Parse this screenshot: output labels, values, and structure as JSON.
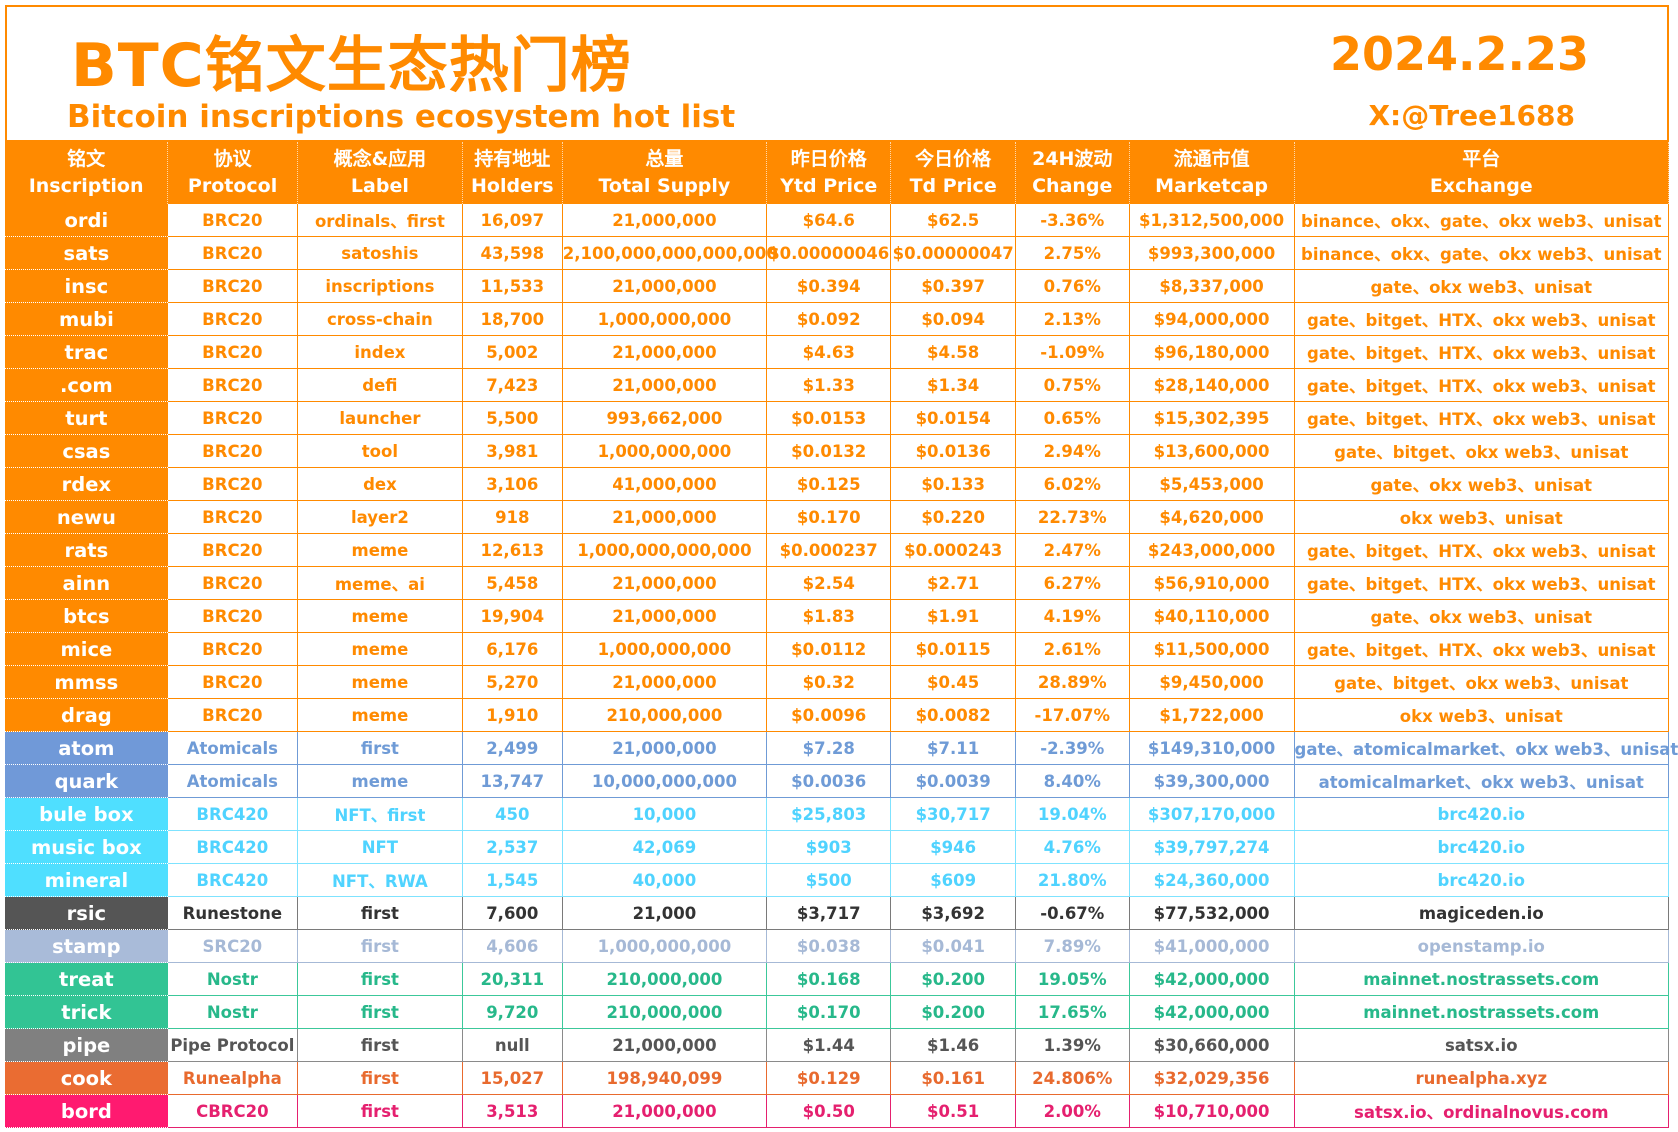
{
  "header": {
    "title_cn": "BTC铭文生态热门榜",
    "title_en": "Bitcoin inscriptions ecosystem hot list",
    "date": "2024.2.23",
    "handle": "X:@Tree1688"
  },
  "columns": [
    {
      "cn": "铭文",
      "en": "Inscription"
    },
    {
      "cn": "协议",
      "en": "Protocol"
    },
    {
      "cn": "概念&应用",
      "en": "Label"
    },
    {
      "cn": "持有地址",
      "en": "Holders"
    },
    {
      "cn": "总量",
      "en": "Total Supply"
    },
    {
      "cn": "昨日价格",
      "en": "Ytd Price"
    },
    {
      "cn": "今日价格",
      "en": "Td Price"
    },
    {
      "cn": "24H波动",
      "en": "Change"
    },
    {
      "cn": "流通市值",
      "en": "Marketcap"
    },
    {
      "cn": "平台",
      "en": "Exchange"
    }
  ],
  "rows": [
    {
      "group": "brc20",
      "name": "ordi",
      "protocol": "BRC20",
      "label": "ordinals、first",
      "holders": "16,097",
      "supply": "21,000,000",
      "ytd": "$64.6",
      "td": "$62.5",
      "change": "-3.36%",
      "mcap": "$1,312,500,000",
      "exchange": "binance、okx、gate、okx web3、unisat"
    },
    {
      "group": "brc20",
      "name": "sats",
      "protocol": "BRC20",
      "label": "satoshis",
      "holders": "43,598",
      "supply": "2,100,000,000,000,000",
      "ytd": "$0.00000046",
      "td": "$0.00000047",
      "change": "2.75%",
      "mcap": "$993,300,000",
      "exchange": "binance、okx、gate、okx web3、unisat"
    },
    {
      "group": "brc20",
      "name": "insc",
      "protocol": "BRC20",
      "label": "inscriptions",
      "holders": "11,533",
      "supply": "21,000,000",
      "ytd": "$0.394",
      "td": "$0.397",
      "change": "0.76%",
      "mcap": "$8,337,000",
      "exchange": "gate、okx web3、unisat"
    },
    {
      "group": "brc20",
      "name": "mubi",
      "protocol": "BRC20",
      "label": "cross-chain",
      "holders": "18,700",
      "supply": "1,000,000,000",
      "ytd": "$0.092",
      "td": "$0.094",
      "change": "2.13%",
      "mcap": "$94,000,000",
      "exchange": "gate、bitget、HTX、okx web3、unisat"
    },
    {
      "group": "brc20",
      "name": "trac",
      "protocol": "BRC20",
      "label": "index",
      "holders": "5,002",
      "supply": "21,000,000",
      "ytd": "$4.63",
      "td": "$4.58",
      "change": "-1.09%",
      "mcap": "$96,180,000",
      "exchange": "gate、bitget、HTX、okx web3、unisat"
    },
    {
      "group": "brc20",
      "name": ".com",
      "protocol": "BRC20",
      "label": "defi",
      "holders": "7,423",
      "supply": "21,000,000",
      "ytd": "$1.33",
      "td": "$1.34",
      "change": "0.75%",
      "mcap": "$28,140,000",
      "exchange": "gate、bitget、HTX、okx web3、unisat"
    },
    {
      "group": "brc20",
      "name": "turt",
      "protocol": "BRC20",
      "label": "launcher",
      "holders": "5,500",
      "supply": "993,662,000",
      "ytd": "$0.0153",
      "td": "$0.0154",
      "change": "0.65%",
      "mcap": "$15,302,395",
      "exchange": "gate、bitget、HTX、okx web3、unisat"
    },
    {
      "group": "brc20",
      "name": "csas",
      "protocol": "BRC20",
      "label": "tool",
      "holders": "3,981",
      "supply": "1,000,000,000",
      "ytd": "$0.0132",
      "td": "$0.0136",
      "change": "2.94%",
      "mcap": "$13,600,000",
      "exchange": "gate、bitget、okx web3、unisat"
    },
    {
      "group": "brc20",
      "name": "rdex",
      "protocol": "BRC20",
      "label": "dex",
      "holders": "3,106",
      "supply": "41,000,000",
      "ytd": "$0.125",
      "td": "$0.133",
      "change": "6.02%",
      "mcap": "$5,453,000",
      "exchange": "gate、okx web3、unisat"
    },
    {
      "group": "brc20",
      "name": "newu",
      "protocol": "BRC20",
      "label": "layer2",
      "holders": "918",
      "supply": "21,000,000",
      "ytd": "$0.170",
      "td": "$0.220",
      "change": "22.73%",
      "mcap": "$4,620,000",
      "exchange": "okx web3、unisat"
    },
    {
      "group": "brc20",
      "name": "rats",
      "protocol": "BRC20",
      "label": "meme",
      "holders": "12,613",
      "supply": "1,000,000,000,000",
      "ytd": "$0.000237",
      "td": "$0.000243",
      "change": "2.47%",
      "mcap": "$243,000,000",
      "exchange": "gate、bitget、HTX、okx web3、unisat"
    },
    {
      "group": "brc20",
      "name": "ainn",
      "protocol": "BRC20",
      "label": "meme、ai",
      "holders": "5,458",
      "supply": "21,000,000",
      "ytd": "$2.54",
      "td": "$2.71",
      "change": "6.27%",
      "mcap": "$56,910,000",
      "exchange": "gate、bitget、HTX、okx web3、unisat"
    },
    {
      "group": "brc20",
      "name": "btcs",
      "protocol": "BRC20",
      "label": "meme",
      "holders": "19,904",
      "supply": "21,000,000",
      "ytd": "$1.83",
      "td": "$1.91",
      "change": "4.19%",
      "mcap": "$40,110,000",
      "exchange": "gate、okx web3、unisat"
    },
    {
      "group": "brc20",
      "name": "mice",
      "protocol": "BRC20",
      "label": "meme",
      "holders": "6,176",
      "supply": "1,000,000,000",
      "ytd": "$0.0112",
      "td": "$0.0115",
      "change": "2.61%",
      "mcap": "$11,500,000",
      "exchange": "gate、bitget、HTX、okx web3、unisat"
    },
    {
      "group": "brc20",
      "name": "mmss",
      "protocol": "BRC20",
      "label": "meme",
      "holders": "5,270",
      "supply": "21,000,000",
      "ytd": "$0.32",
      "td": "$0.45",
      "change": "28.89%",
      "mcap": "$9,450,000",
      "exchange": "gate、bitget、okx web3、unisat"
    },
    {
      "group": "brc20",
      "name": "drag",
      "protocol": "BRC20",
      "label": "meme",
      "holders": "1,910",
      "supply": "210,000,000",
      "ytd": "$0.0096",
      "td": "$0.0082",
      "change": "-17.07%",
      "mcap": "$1,722,000",
      "exchange": "okx web3、unisat"
    },
    {
      "group": "atom",
      "name": "atom",
      "protocol": "Atomicals",
      "label": "first",
      "holders": "2,499",
      "supply": "21,000,000",
      "ytd": "$7.28",
      "td": "$7.11",
      "change": "-2.39%",
      "mcap": "$149,310,000",
      "exchange": "gate、atomicalmarket、okx web3、unisat"
    },
    {
      "group": "atom",
      "name": "quark",
      "protocol": "Atomicals",
      "label": "meme",
      "holders": "13,747",
      "supply": "10,000,000,000",
      "ytd": "$0.0036",
      "td": "$0.0039",
      "change": "8.40%",
      "mcap": "$39,300,000",
      "exchange": "atomicalmarket、okx web3、unisat"
    },
    {
      "group": "brc420",
      "name": "bule box",
      "protocol": "BRC420",
      "label": "NFT、first",
      "holders": "450",
      "supply": "10,000",
      "ytd": "$25,803",
      "td": "$30,717",
      "change": "19.04%",
      "mcap": "$307,170,000",
      "exchange": "brc420.io"
    },
    {
      "group": "brc420",
      "name": "music box",
      "protocol": "BRC420",
      "label": "NFT",
      "holders": "2,537",
      "supply": "42,069",
      "ytd": "$903",
      "td": "$946",
      "change": "4.76%",
      "mcap": "$39,797,274",
      "exchange": "brc420.io"
    },
    {
      "group": "brc420",
      "name": "mineral",
      "protocol": "BRC420",
      "label": "NFT、RWA",
      "holders": "1,545",
      "supply": "40,000",
      "ytd": "$500",
      "td": "$609",
      "change": "21.80%",
      "mcap": "$24,360,000",
      "exchange": "brc420.io"
    },
    {
      "group": "rune",
      "name": "rsic",
      "protocol": "Runestone",
      "label": "first",
      "holders": "7,600",
      "supply": "21,000",
      "ytd": "$3,717",
      "td": "$3,692",
      "change": "-0.67%",
      "mcap": "$77,532,000",
      "exchange": "magiceden.io"
    },
    {
      "group": "src20",
      "name": "stamp",
      "protocol": "SRC20",
      "label": "first",
      "holders": "4,606",
      "supply": "1,000,000,000",
      "ytd": "$0.038",
      "td": "$0.041",
      "change": "7.89%",
      "mcap": "$41,000,000",
      "exchange": "openstamp.io"
    },
    {
      "group": "nostr",
      "name": "treat",
      "protocol": "Nostr",
      "label": "first",
      "holders": "20,311",
      "supply": "210,000,000",
      "ytd": "$0.168",
      "td": "$0.200",
      "change": "19.05%",
      "mcap": "$42,000,000",
      "exchange": "mainnet.nostrassets.com"
    },
    {
      "group": "nostr",
      "name": "trick",
      "protocol": "Nostr",
      "label": "first",
      "holders": "9,720",
      "supply": "210,000,000",
      "ytd": "$0.170",
      "td": "$0.200",
      "change": "17.65%",
      "mcap": "$42,000,000",
      "exchange": "mainnet.nostrassets.com"
    },
    {
      "group": "pipe",
      "name": "pipe",
      "protocol": "Pipe Protocol",
      "label": "first",
      "holders": "null",
      "supply": "21,000,000",
      "ytd": "$1.44",
      "td": "$1.46",
      "change": "1.39%",
      "mcap": "$30,660,000",
      "exchange": "satsx.io"
    },
    {
      "group": "rune2",
      "name": "cook",
      "protocol": "Runealpha",
      "label": "first",
      "holders": "15,027",
      "supply": "198,940,099",
      "ytd": "$0.129",
      "td": "$0.161",
      "change": "24.806%",
      "mcap": "$32,029,356",
      "exchange": "runealpha.xyz"
    },
    {
      "group": "cbrc",
      "name": "bord",
      "protocol": "CBRC20",
      "label": "first",
      "holders": "3,513",
      "supply": "21,000,000",
      "ytd": "$0.50",
      "td": "$0.51",
      "change": "2.00%",
      "mcap": "$10,710,000",
      "exchange": "satsx.io、ordinalnovus.com"
    }
  ]
}
